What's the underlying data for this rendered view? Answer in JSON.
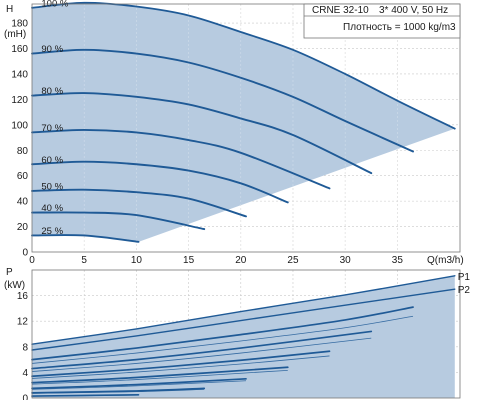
{
  "chart_data": [
    {
      "type": "line",
      "title": "CRNE 32-10",
      "info": {
        "model": "CRNE 32-10",
        "supply": "3* 400 V, 50 Hz",
        "density": "Плотность = 1000 kg/m3"
      },
      "ylabel_top": "H",
      "ylabel_unit": "(mH)",
      "xlabel": "Q(m3/h)",
      "xlim": [
        0,
        41
      ],
      "ylim": [
        0,
        195
      ],
      "xticks": [
        0,
        5,
        10,
        15,
        20,
        25,
        30,
        35
      ],
      "yticks": [
        0,
        20,
        40,
        60,
        80,
        100,
        120,
        140,
        160,
        180
      ],
      "grid": true,
      "accent_color": "#1f5a96",
      "fill_color": "#b7cbe0",
      "series": [
        {
          "name": "100 %",
          "x": [
            0,
            5,
            10,
            15,
            20,
            25,
            30,
            35,
            40.5
          ],
          "y": [
            192,
            196,
            193,
            186,
            173,
            159,
            140,
            119,
            97
          ]
        },
        {
          "name": "90 %",
          "x": [
            0,
            5,
            10,
            15,
            20,
            25,
            30,
            36.5
          ],
          "y": [
            156,
            159,
            156,
            149,
            137,
            122,
            103,
            79
          ]
        },
        {
          "name": "80 %",
          "x": [
            0,
            5,
            10,
            15,
            20,
            25,
            32.5
          ],
          "y": [
            123,
            125,
            122,
            116,
            105,
            92,
            62
          ]
        },
        {
          "name": "70 %",
          "x": [
            0,
            5,
            10,
            15,
            20,
            28.5
          ],
          "y": [
            94,
            96,
            94,
            88,
            78,
            50
          ]
        },
        {
          "name": "60 %",
          "x": [
            0,
            5,
            10,
            15,
            20,
            24.5
          ],
          "y": [
            69,
            71,
            69,
            64,
            54,
            39
          ]
        },
        {
          "name": "50 %",
          "x": [
            0,
            5,
            10,
            15,
            20.5
          ],
          "y": [
            48,
            49,
            47,
            42,
            28
          ]
        },
        {
          "name": "40 %",
          "x": [
            0,
            5,
            10,
            16.5
          ],
          "y": [
            31,
            31,
            29,
            18
          ]
        },
        {
          "name": "25 %",
          "x": [
            0,
            5,
            10.2
          ],
          "y": [
            13,
            13,
            8
          ]
        }
      ]
    },
    {
      "type": "line",
      "ylabel_top": "P",
      "ylabel_unit": "(kW)",
      "xlim": [
        0,
        41
      ],
      "ylim": [
        0,
        20
      ],
      "yticks": [
        0,
        4,
        8,
        12,
        16
      ],
      "grid": true,
      "series": [
        {
          "name": "P1",
          "x": [
            0,
            10,
            20,
            30,
            40.5
          ],
          "y": [
            8.4,
            10.8,
            13.5,
            16.1,
            19.1
          ]
        },
        {
          "name": "P2",
          "x": [
            0,
            10,
            20,
            30,
            40.5
          ],
          "y": [
            7.5,
            9.7,
            12.1,
            14.5,
            17.0
          ]
        },
        {
          "name": "",
          "x": [
            0,
            10,
            20,
            30,
            36.5
          ],
          "y": [
            6.0,
            7.8,
            9.9,
            12.2,
            14.2
          ]
        },
        {
          "name": "",
          "x": [
            0,
            10,
            20,
            32.5
          ],
          "y": [
            4.6,
            6.0,
            7.8,
            10.4
          ]
        },
        {
          "name": "",
          "x": [
            0,
            10,
            20,
            28.5
          ],
          "y": [
            3.4,
            4.5,
            5.9,
            7.3
          ]
        },
        {
          "name": "",
          "x": [
            0,
            10,
            24.5
          ],
          "y": [
            2.4,
            3.2,
            4.8
          ]
        },
        {
          "name": "",
          "x": [
            0,
            10,
            20.5
          ],
          "y": [
            1.5,
            2.1,
            3.0
          ]
        },
        {
          "name": "",
          "x": [
            0,
            10,
            16.5
          ],
          "y": [
            0.8,
            1.1,
            1.5
          ]
        },
        {
          "name": "",
          "x": [
            0,
            5,
            10.2
          ],
          "y": [
            0.3,
            0.4,
            0.5
          ]
        }
      ]
    }
  ]
}
